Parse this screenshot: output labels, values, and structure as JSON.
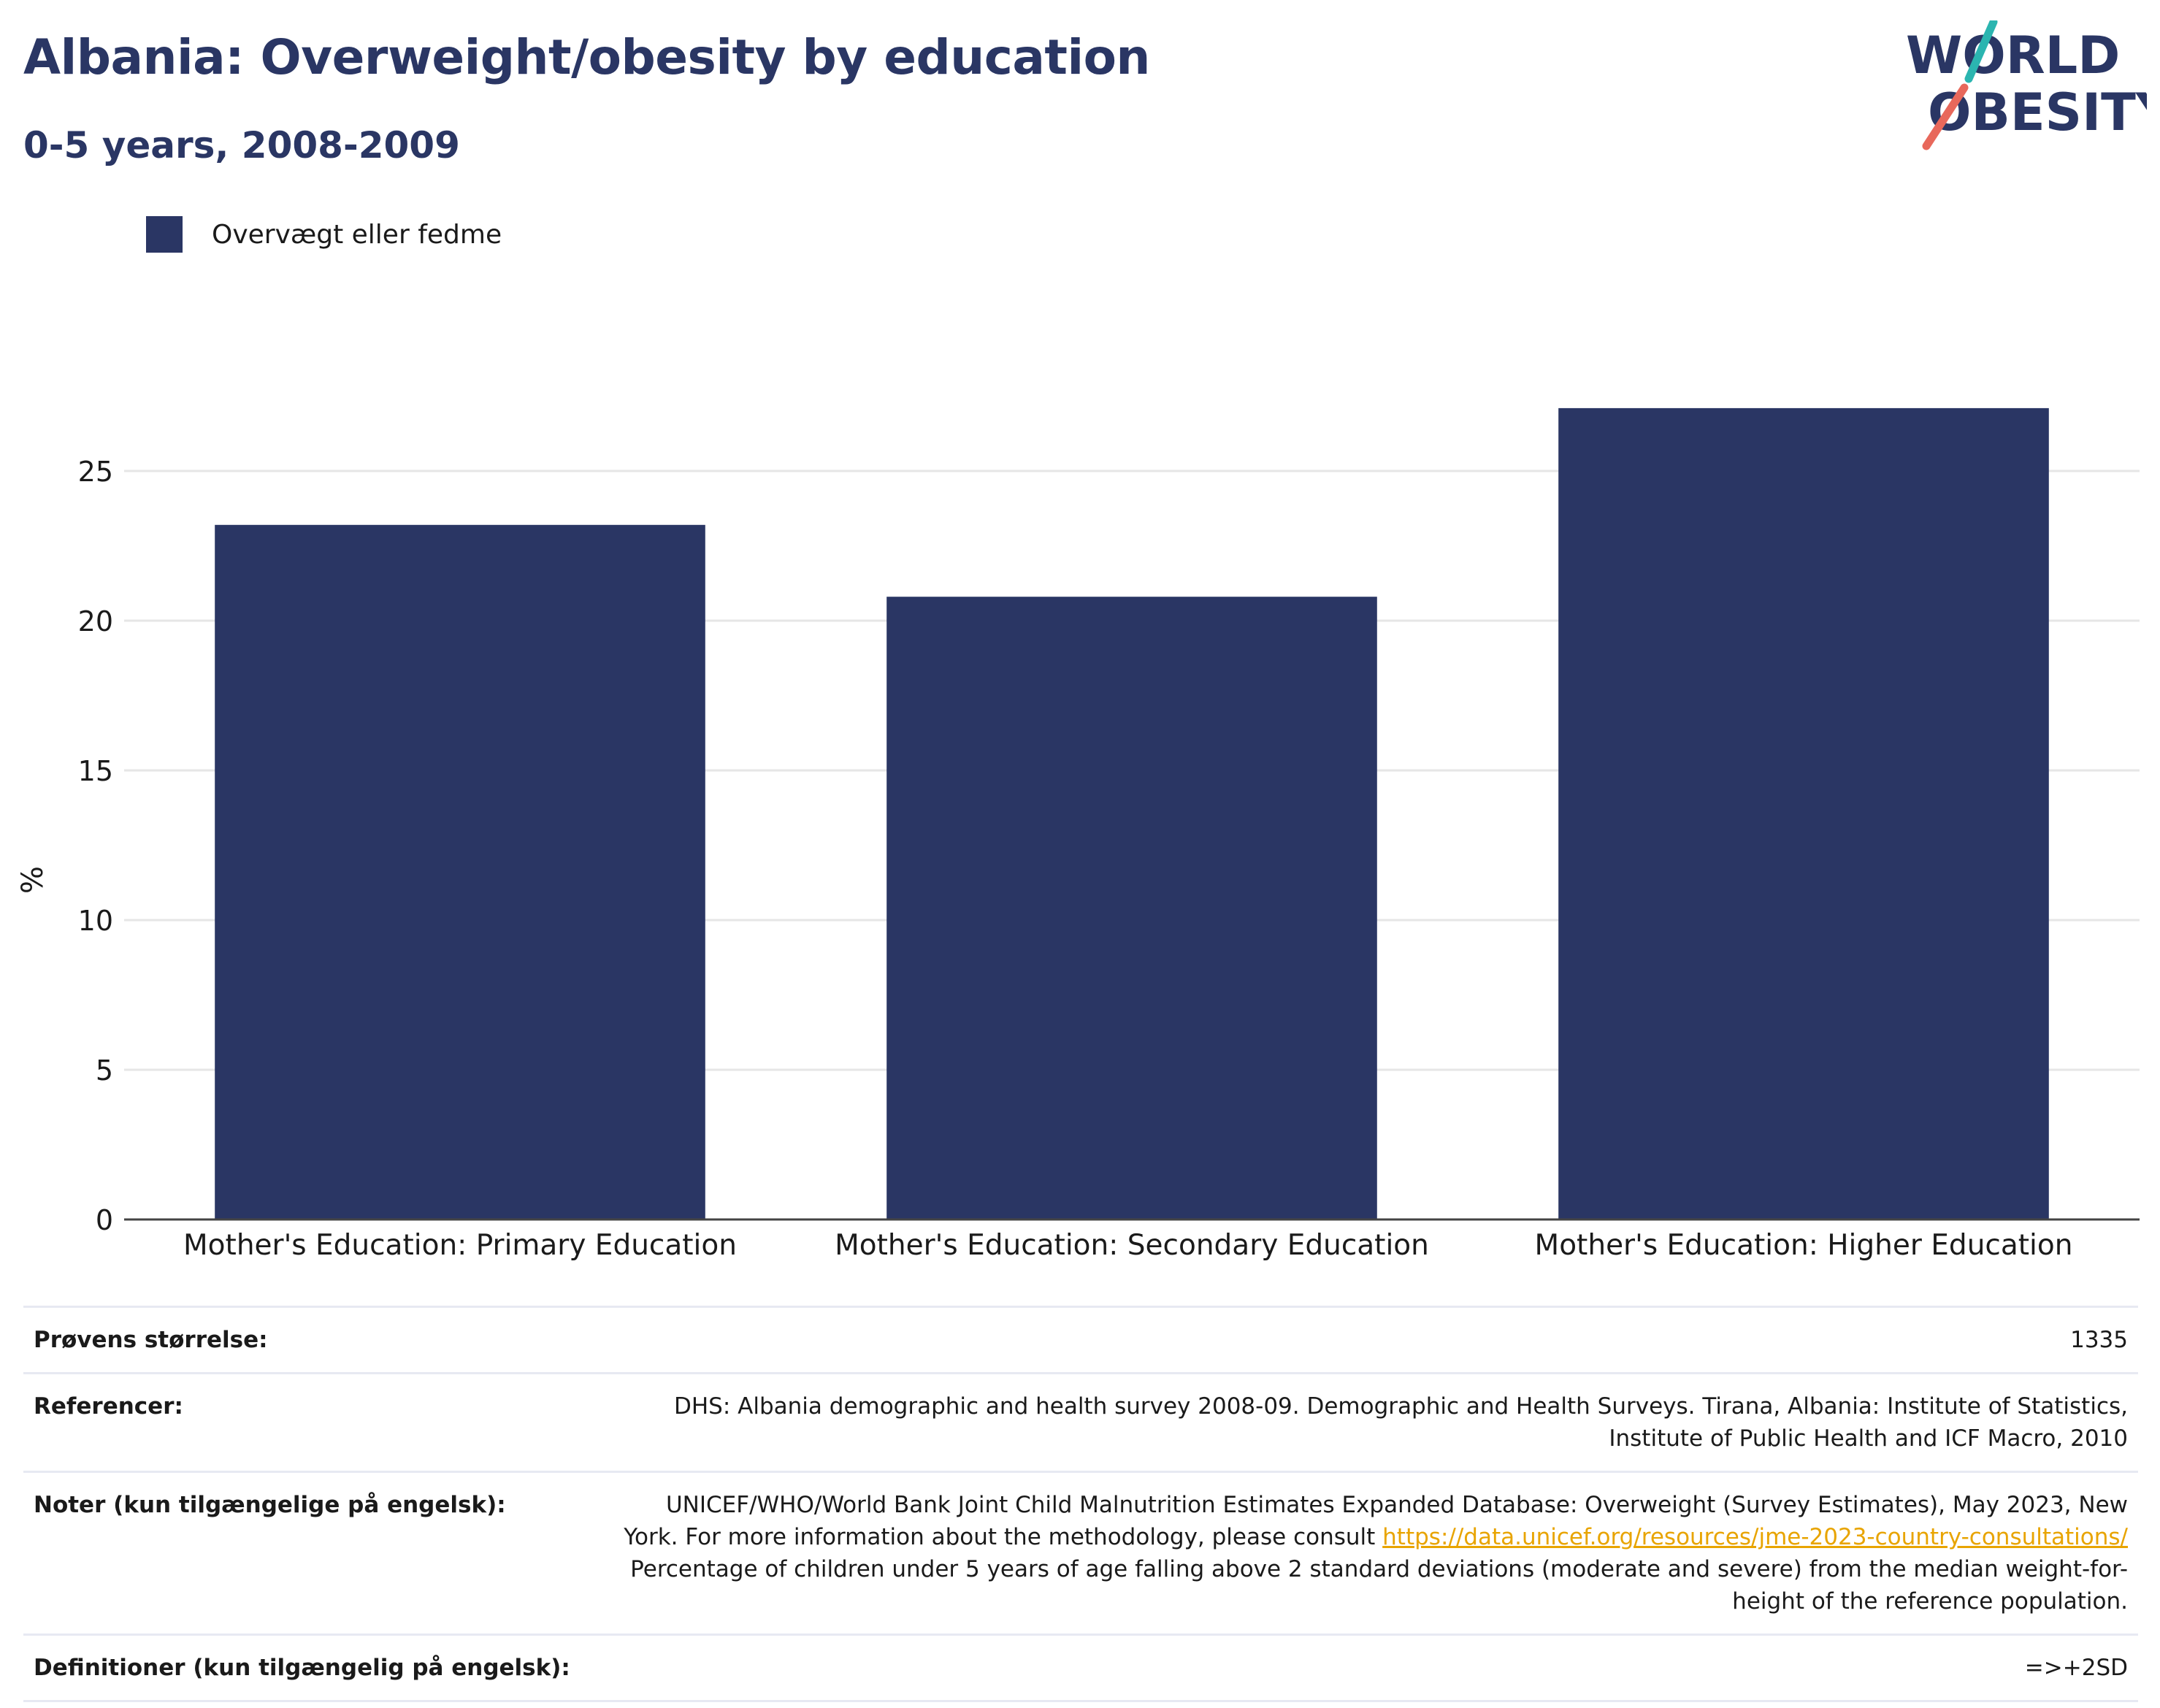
{
  "header": {
    "title": "Albania: Overweight/obesity by education",
    "subtitle": "0-5 years, 2008-2009"
  },
  "logo": {
    "line1": "WORLD",
    "line2": "OBESITY"
  },
  "colors": {
    "bar": "#2a3664",
    "title": "#2a3664",
    "grid": "#e6e6e6",
    "link": "#e8a400",
    "logo_teal": "#2bb5b0",
    "logo_coral": "#e8685b"
  },
  "chart_data": {
    "type": "bar",
    "categories": [
      "Mother's Education: Primary Education",
      "Mother's Education: Secondary Education",
      "Mother's Education: Higher Education"
    ],
    "series": [
      {
        "name": "Overvægt eller fedme",
        "values": [
          23.2,
          20.8,
          27.1
        ]
      }
    ],
    "ylabel": "%",
    "ylim": [
      0,
      30
    ],
    "yticks": [
      0,
      5,
      10,
      15,
      20,
      25
    ],
    "grid": true,
    "legend": "top-left"
  },
  "info": {
    "sample_label": "Prøvens størrelse:",
    "sample_value": "1335",
    "references_label": "Referencer:",
    "references_value": "DHS: Albania demographic and health survey 2008-09. Demographic and Health Surveys. Tirana, Albania: Institute of Statistics, Institute of Public Health and ICF Macro, 2010",
    "notes_label": "Noter (kun tilgængelige på engelsk):",
    "notes_text1": "UNICEF/WHO/World Bank Joint Child Malnutrition Estimates Expanded Database: Overweight (Survey Estimates), May 2023, New York. For more information about the methodology, please consult",
    "notes_link": "https://data.unicef.org/resources/jme-2023-country-consultations/",
    "notes_text2": "Percentage of children under 5 years of age falling above 2 standard deviations (moderate and severe) from the median weight-for-height of the reference population.",
    "definitions_label": "Definitioner (kun tilgængelig på engelsk):",
    "definitions_value": "=>+2SD"
  }
}
